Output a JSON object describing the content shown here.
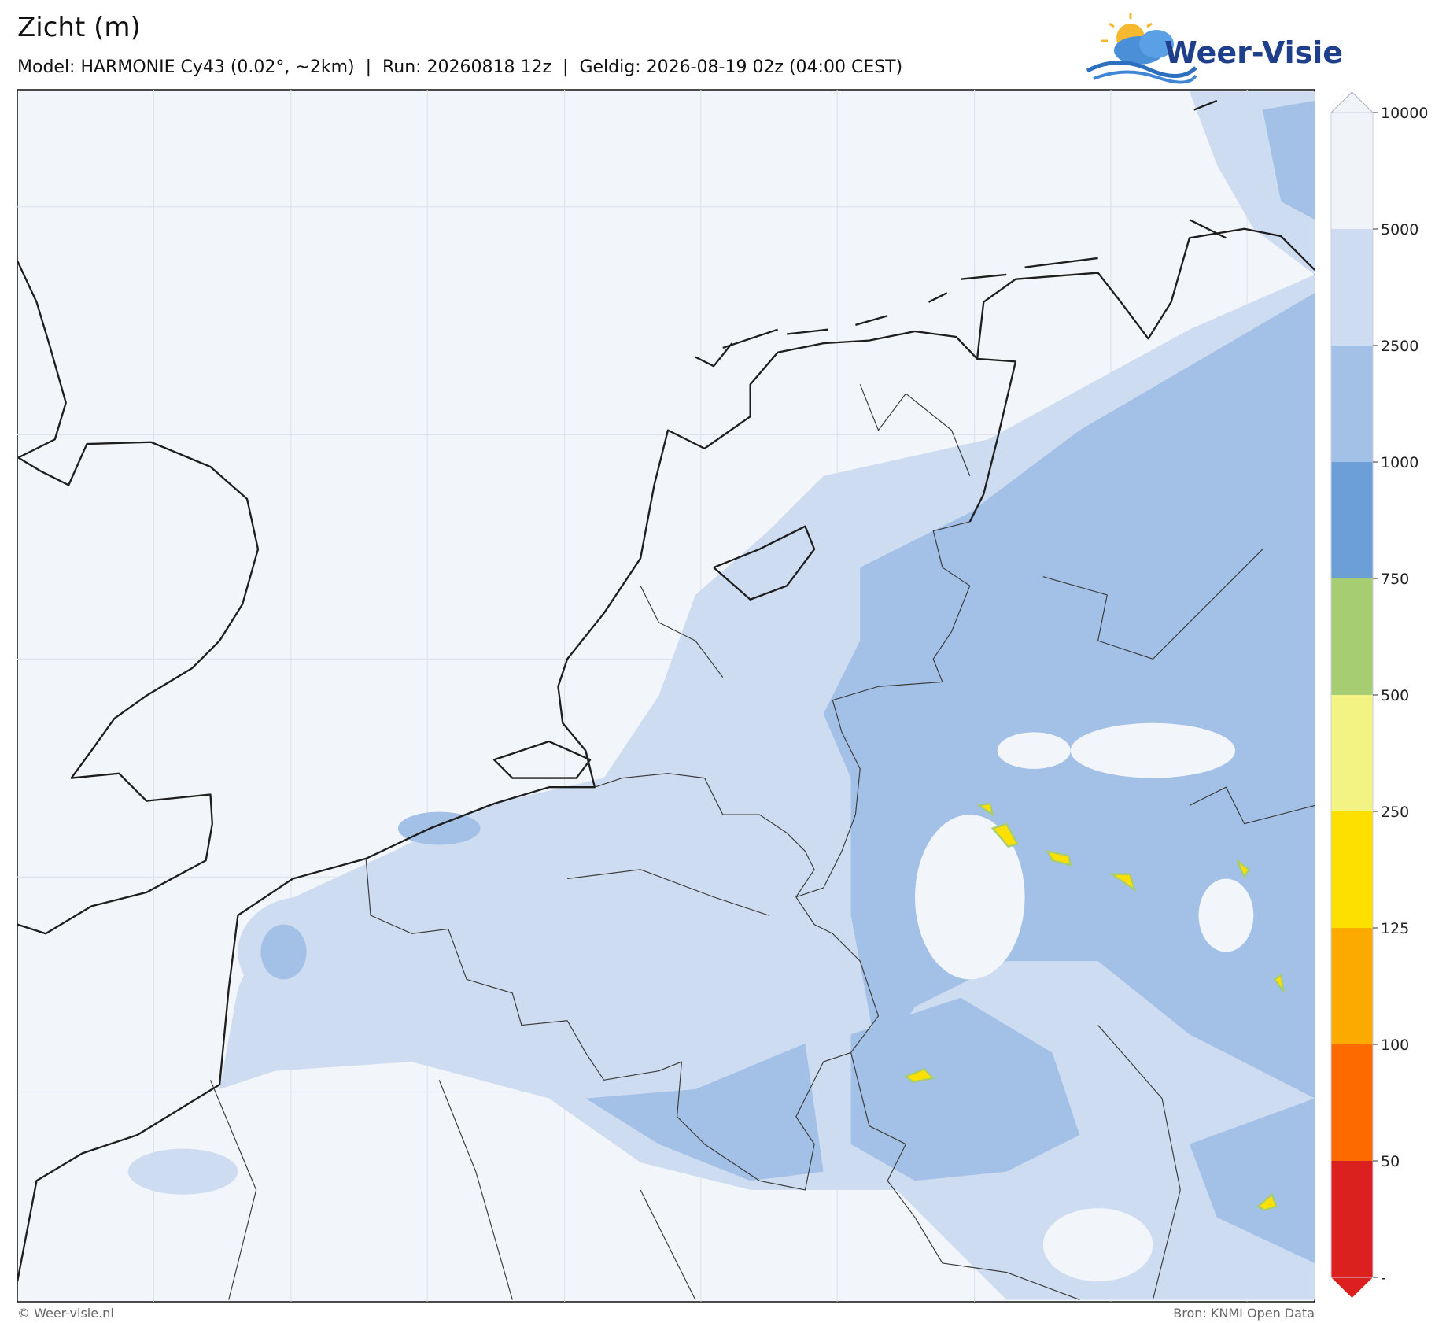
{
  "header": {
    "title": "Zicht (m)",
    "subtitle": "Model: HARMONIE Cy43 (0.02°, ~2km)  |  Run: 20260818 12z  |  Geldig: 2026-08-19 02z (04:00 CEST)",
    "logo": "Weer-Visie"
  },
  "colorbar": {
    "ticks": [
      10000,
      5000,
      2500,
      1000,
      750,
      500,
      250,
      125,
      100,
      50
    ],
    "bottom_label": "-",
    "colors": [
      "#f0f4f9",
      "#cddcf0",
      "#a3c0e7",
      "#6c9fd8",
      "#a7cd72",
      "#f3f384",
      "#fde000",
      "#fcaa00",
      "#fd6a00",
      "#dc2020"
    ],
    "over_color": "#f0f4f9",
    "under_color": "#dc2020"
  },
  "footer": {
    "left": "© Weer-visie.nl",
    "right": "Bron: KNMI Open Data"
  }
}
